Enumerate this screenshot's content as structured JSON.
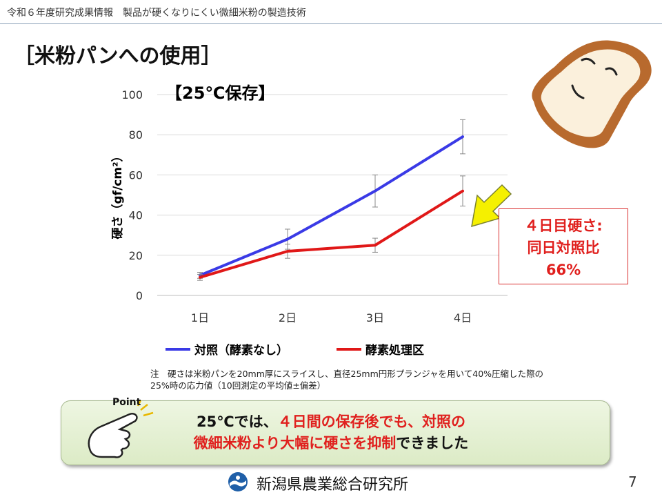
{
  "header": {
    "text": "令和６年度研究成果情報　製品が硬くなりにくい微細米粉の製造技術"
  },
  "title": "［米粉パンへの使用］",
  "chart_data": {
    "type": "line",
    "title": "【25℃保存】",
    "ylabel": "硬さ（gf/cm²）",
    "xlabel": "",
    "categories": [
      "1日",
      "2日",
      "3日",
      "4日"
    ],
    "ylim": [
      0,
      100
    ],
    "yticks": [
      0,
      20,
      40,
      60,
      80,
      100
    ],
    "grid": true,
    "legend_position": "bottom",
    "series": [
      {
        "name": "対照（酵素なし）",
        "color": "#3a3ae6",
        "values": [
          10,
          28,
          52,
          79
        ],
        "errors": [
          1.5,
          5,
          8,
          8.5
        ]
      },
      {
        "name": "酵素処理区",
        "color": "#e01818",
        "values": [
          9,
          22,
          25,
          52
        ],
        "errors": [
          1.5,
          3.5,
          3.5,
          7.5
        ]
      }
    ]
  },
  "callout": {
    "line1": "４日目硬さ:",
    "line2": "同日対照比",
    "line3": "66%"
  },
  "note": {
    "line1": "注　硬さは米粉パンを20mm厚にスライスし、直径25mm円形プランジャを用いて40%圧縮した際の",
    "line2": "25%時の応力値（10回測定の平均値±偏差）"
  },
  "point": {
    "label": "Point",
    "line1_pre": "25℃では、",
    "line1_red": "４日間の保存後でも、対照の",
    "line2_red": "微細米粉より大幅に硬さを抑制",
    "line2_post": "できました"
  },
  "footer": {
    "org": "新潟県農業総合研究所",
    "page": "7"
  }
}
